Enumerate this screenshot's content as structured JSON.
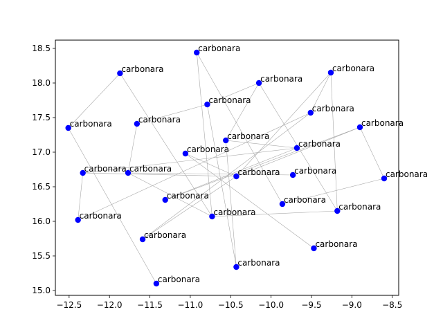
{
  "chart_data": {
    "type": "scatter",
    "title": "",
    "xlabel": "",
    "ylabel": "",
    "xlim": [
      -12.67,
      -8.42
    ],
    "ylim": [
      14.93,
      18.62
    ],
    "grid": false,
    "x_ticks": [
      "−12.5",
      "−12.0",
      "−11.5",
      "−11.0",
      "−10.5",
      "−10.0",
      "−9.5",
      "−9.0",
      "−8.5"
    ],
    "x_tick_values": [
      -12.5,
      -12.0,
      -11.5,
      -11.0,
      -10.5,
      -10.0,
      -9.5,
      -9.0,
      -8.5
    ],
    "y_ticks": [
      "15.0",
      "15.5",
      "16.0",
      "16.5",
      "17.0",
      "17.5",
      "18.0",
      "18.5"
    ],
    "y_tick_values": [
      15.0,
      15.5,
      16.0,
      16.5,
      17.0,
      17.5,
      18.0,
      18.5
    ],
    "marker_color": "#0000ff",
    "edge_color": "#a8a8a8",
    "points": [
      {
        "label": "carbonara",
        "x": -10.92,
        "y": 18.44
      },
      {
        "label": "carbonara",
        "x": -11.87,
        "y": 18.14
      },
      {
        "label": "carbonara",
        "x": -9.26,
        "y": 18.15
      },
      {
        "label": "carbonara",
        "x": -10.15,
        "y": 18.0
      },
      {
        "label": "carbonara",
        "x": -10.79,
        "y": 17.69
      },
      {
        "label": "carbonara",
        "x": -9.51,
        "y": 17.57
      },
      {
        "label": "carbonara",
        "x": -11.66,
        "y": 17.41
      },
      {
        "label": "carbonara",
        "x": -12.51,
        "y": 17.35
      },
      {
        "label": "carbonara",
        "x": -8.9,
        "y": 17.36
      },
      {
        "label": "carbonara",
        "x": -10.56,
        "y": 17.17
      },
      {
        "label": "carbonara",
        "x": -9.68,
        "y": 17.06
      },
      {
        "label": "carbonara",
        "x": -11.06,
        "y": 16.98
      },
      {
        "label": "carbonara",
        "x": -12.33,
        "y": 16.7
      },
      {
        "label": "carbonara",
        "x": -11.77,
        "y": 16.7
      },
      {
        "label": "carbonara",
        "x": -10.43,
        "y": 16.65
      },
      {
        "label": "carbonara",
        "x": -9.73,
        "y": 16.67
      },
      {
        "label": "carbonara",
        "x": -8.6,
        "y": 16.62
      },
      {
        "label": "carbonara",
        "x": -11.31,
        "y": 16.31
      },
      {
        "label": "carbonara",
        "x": -9.86,
        "y": 16.25
      },
      {
        "label": "carbonara",
        "x": -9.18,
        "y": 16.15
      },
      {
        "label": "carbonara",
        "x": -12.39,
        "y": 16.02
      },
      {
        "label": "carbonara",
        "x": -10.73,
        "y": 16.07
      },
      {
        "label": "carbonara",
        "x": -11.59,
        "y": 15.74
      },
      {
        "label": "carbonara",
        "x": -9.47,
        "y": 15.61
      },
      {
        "label": "carbonara",
        "x": -10.43,
        "y": 15.34
      },
      {
        "label": "carbonara",
        "x": -11.42,
        "y": 15.1
      }
    ],
    "edges": [
      [
        0,
        21
      ],
      [
        0,
        18
      ],
      [
        1,
        7
      ],
      [
        1,
        21
      ],
      [
        2,
        5
      ],
      [
        2,
        19
      ],
      [
        3,
        9
      ],
      [
        3,
        19
      ],
      [
        4,
        6
      ],
      [
        4,
        24
      ],
      [
        6,
        13
      ],
      [
        7,
        25
      ],
      [
        9,
        10
      ],
      [
        10,
        17
      ],
      [
        11,
        23
      ],
      [
        12,
        20
      ],
      [
        12,
        14
      ],
      [
        13,
        15
      ],
      [
        14,
        22
      ],
      [
        14,
        8
      ],
      [
        3,
        4
      ],
      [
        13,
        21
      ],
      [
        5,
        22
      ],
      [
        21,
        19
      ],
      [
        11,
        14
      ],
      [
        8,
        17
      ],
      [
        8,
        16
      ],
      [
        16,
        18
      ],
      [
        20,
        5
      ],
      [
        2,
        14
      ],
      [
        9,
        24
      ],
      [
        12,
        10
      ]
    ]
  }
}
